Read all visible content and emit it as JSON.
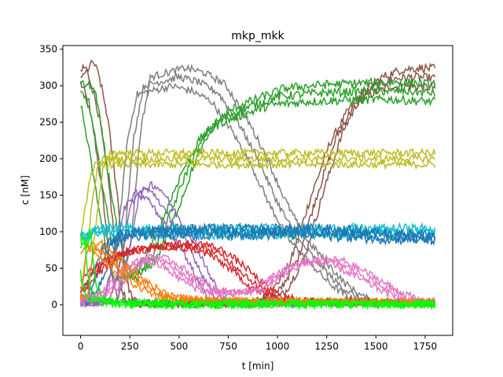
{
  "chart_data": {
    "type": "line",
    "title": "mkp_mkk",
    "xlabel": "t [min]",
    "ylabel": "c [nM]",
    "xlim": [
      -90,
      1890
    ],
    "ylim": [
      -42,
      355
    ],
    "x_ticks": [
      0,
      250,
      500,
      750,
      1000,
      1250,
      1500,
      1750
    ],
    "y_ticks": [
      0,
      50,
      100,
      150,
      200,
      250,
      300,
      350
    ],
    "grid": false,
    "legend": "none",
    "replicates": 3,
    "series": [
      {
        "color": "#8c564b",
        "noise": 6,
        "points": [
          [
            0,
            310
          ],
          [
            30,
            320
          ],
          [
            60,
            300
          ],
          [
            100,
            250
          ],
          [
            150,
            150
          ],
          [
            190,
            40
          ],
          [
            230,
            5
          ],
          [
            300,
            2
          ],
          [
            900,
            2
          ],
          [
            1000,
            15
          ],
          [
            1100,
            60
          ],
          [
            1200,
            150
          ],
          [
            1300,
            230
          ],
          [
            1400,
            280
          ],
          [
            1500,
            300
          ],
          [
            1600,
            310
          ],
          [
            1700,
            312
          ],
          [
            1800,
            310
          ]
        ]
      },
      {
        "color": "#7f7f7f",
        "noise": 5,
        "points": [
          [
            0,
            2
          ],
          [
            150,
            5
          ],
          [
            220,
            80
          ],
          [
            270,
            230
          ],
          [
            320,
            300
          ],
          [
            500,
            312
          ],
          [
            600,
            305
          ],
          [
            700,
            290
          ],
          [
            800,
            250
          ],
          [
            900,
            200
          ],
          [
            1000,
            140
          ],
          [
            1100,
            90
          ],
          [
            1200,
            60
          ],
          [
            1300,
            30
          ],
          [
            1400,
            10
          ],
          [
            1500,
            2
          ],
          [
            1800,
            2
          ]
        ]
      },
      {
        "color": "#2ca02c",
        "noise": 6,
        "points": [
          [
            0,
            290
          ],
          [
            40,
            280
          ],
          [
            90,
            200
          ],
          [
            150,
            100
          ],
          [
            200,
            40
          ],
          [
            250,
            35
          ],
          [
            350,
            60
          ],
          [
            450,
            120
          ],
          [
            550,
            190
          ],
          [
            650,
            240
          ],
          [
            750,
            260
          ],
          [
            850,
            270
          ],
          [
            1000,
            285
          ],
          [
            1200,
            290
          ],
          [
            1400,
            292
          ],
          [
            1600,
            293
          ],
          [
            1800,
            290
          ]
        ]
      },
      {
        "color": "#bcbd22",
        "noise": 5,
        "points": [
          [
            0,
            10
          ],
          [
            40,
            100
          ],
          [
            80,
            180
          ],
          [
            110,
            200
          ],
          [
            300,
            200
          ],
          [
            600,
            200
          ],
          [
            900,
            200
          ],
          [
            1200,
            200
          ],
          [
            1500,
            200
          ],
          [
            1800,
            200
          ]
        ]
      },
      {
        "color": "#9467bd",
        "noise": 5,
        "points": [
          [
            0,
            2
          ],
          [
            150,
            5
          ],
          [
            200,
            60
          ],
          [
            260,
            140
          ],
          [
            320,
            160
          ],
          [
            380,
            150
          ],
          [
            450,
            120
          ],
          [
            550,
            80
          ],
          [
            620,
            40
          ],
          [
            680,
            10
          ],
          [
            750,
            2
          ],
          [
            1800,
            2
          ]
        ]
      },
      {
        "color": "#17becf",
        "noise": 7,
        "points": [
          [
            0,
            90
          ],
          [
            50,
            100
          ],
          [
            100,
            102
          ],
          [
            300,
            100
          ],
          [
            600,
            100
          ],
          [
            900,
            100
          ],
          [
            1200,
            100
          ],
          [
            1500,
            100
          ],
          [
            1800,
            100
          ]
        ]
      },
      {
        "color": "#1f77b4",
        "noise": 7,
        "points": [
          [
            0,
            5
          ],
          [
            50,
            20
          ],
          [
            100,
            50
          ],
          [
            150,
            80
          ],
          [
            200,
            95
          ],
          [
            400,
            100
          ],
          [
            800,
            100
          ],
          [
            1200,
            100
          ],
          [
            1500,
            95
          ],
          [
            1800,
            92
          ]
        ]
      },
      {
        "color": "#d62728",
        "noise": 5,
        "points": [
          [
            0,
            20
          ],
          [
            50,
            40
          ],
          [
            120,
            55
          ],
          [
            200,
            70
          ],
          [
            400,
            80
          ],
          [
            600,
            80
          ],
          [
            700,
            70
          ],
          [
            800,
            50
          ],
          [
            900,
            25
          ],
          [
            1000,
            10
          ],
          [
            1100,
            5
          ],
          [
            1800,
            3
          ]
        ]
      },
      {
        "color": "#e377c2",
        "noise": 5,
        "points": [
          [
            0,
            5
          ],
          [
            150,
            20
          ],
          [
            250,
            50
          ],
          [
            350,
            65
          ],
          [
            450,
            55
          ],
          [
            550,
            35
          ],
          [
            650,
            20
          ],
          [
            750,
            15
          ],
          [
            900,
            20
          ],
          [
            1000,
            40
          ],
          [
            1100,
            55
          ],
          [
            1200,
            60
          ],
          [
            1300,
            58
          ],
          [
            1400,
            45
          ],
          [
            1500,
            30
          ],
          [
            1600,
            15
          ],
          [
            1700,
            5
          ],
          [
            1800,
            3
          ]
        ]
      },
      {
        "color": "#ff7f0e",
        "noise": 5,
        "points": [
          [
            0,
            10
          ],
          [
            30,
            70
          ],
          [
            60,
            85
          ],
          [
            120,
            70
          ],
          [
            200,
            50
          ],
          [
            300,
            30
          ],
          [
            400,
            15
          ],
          [
            500,
            8
          ],
          [
            700,
            5
          ],
          [
            1800,
            3
          ]
        ]
      },
      {
        "color": "#00ff00",
        "noise": 6,
        "points": [
          [
            0,
            80
          ],
          [
            15,
            100
          ],
          [
            40,
            30
          ],
          [
            80,
            5
          ],
          [
            200,
            2
          ],
          [
            500,
            1
          ],
          [
            1000,
            1
          ],
          [
            1500,
            1
          ],
          [
            1800,
            1
          ]
        ]
      }
    ]
  }
}
